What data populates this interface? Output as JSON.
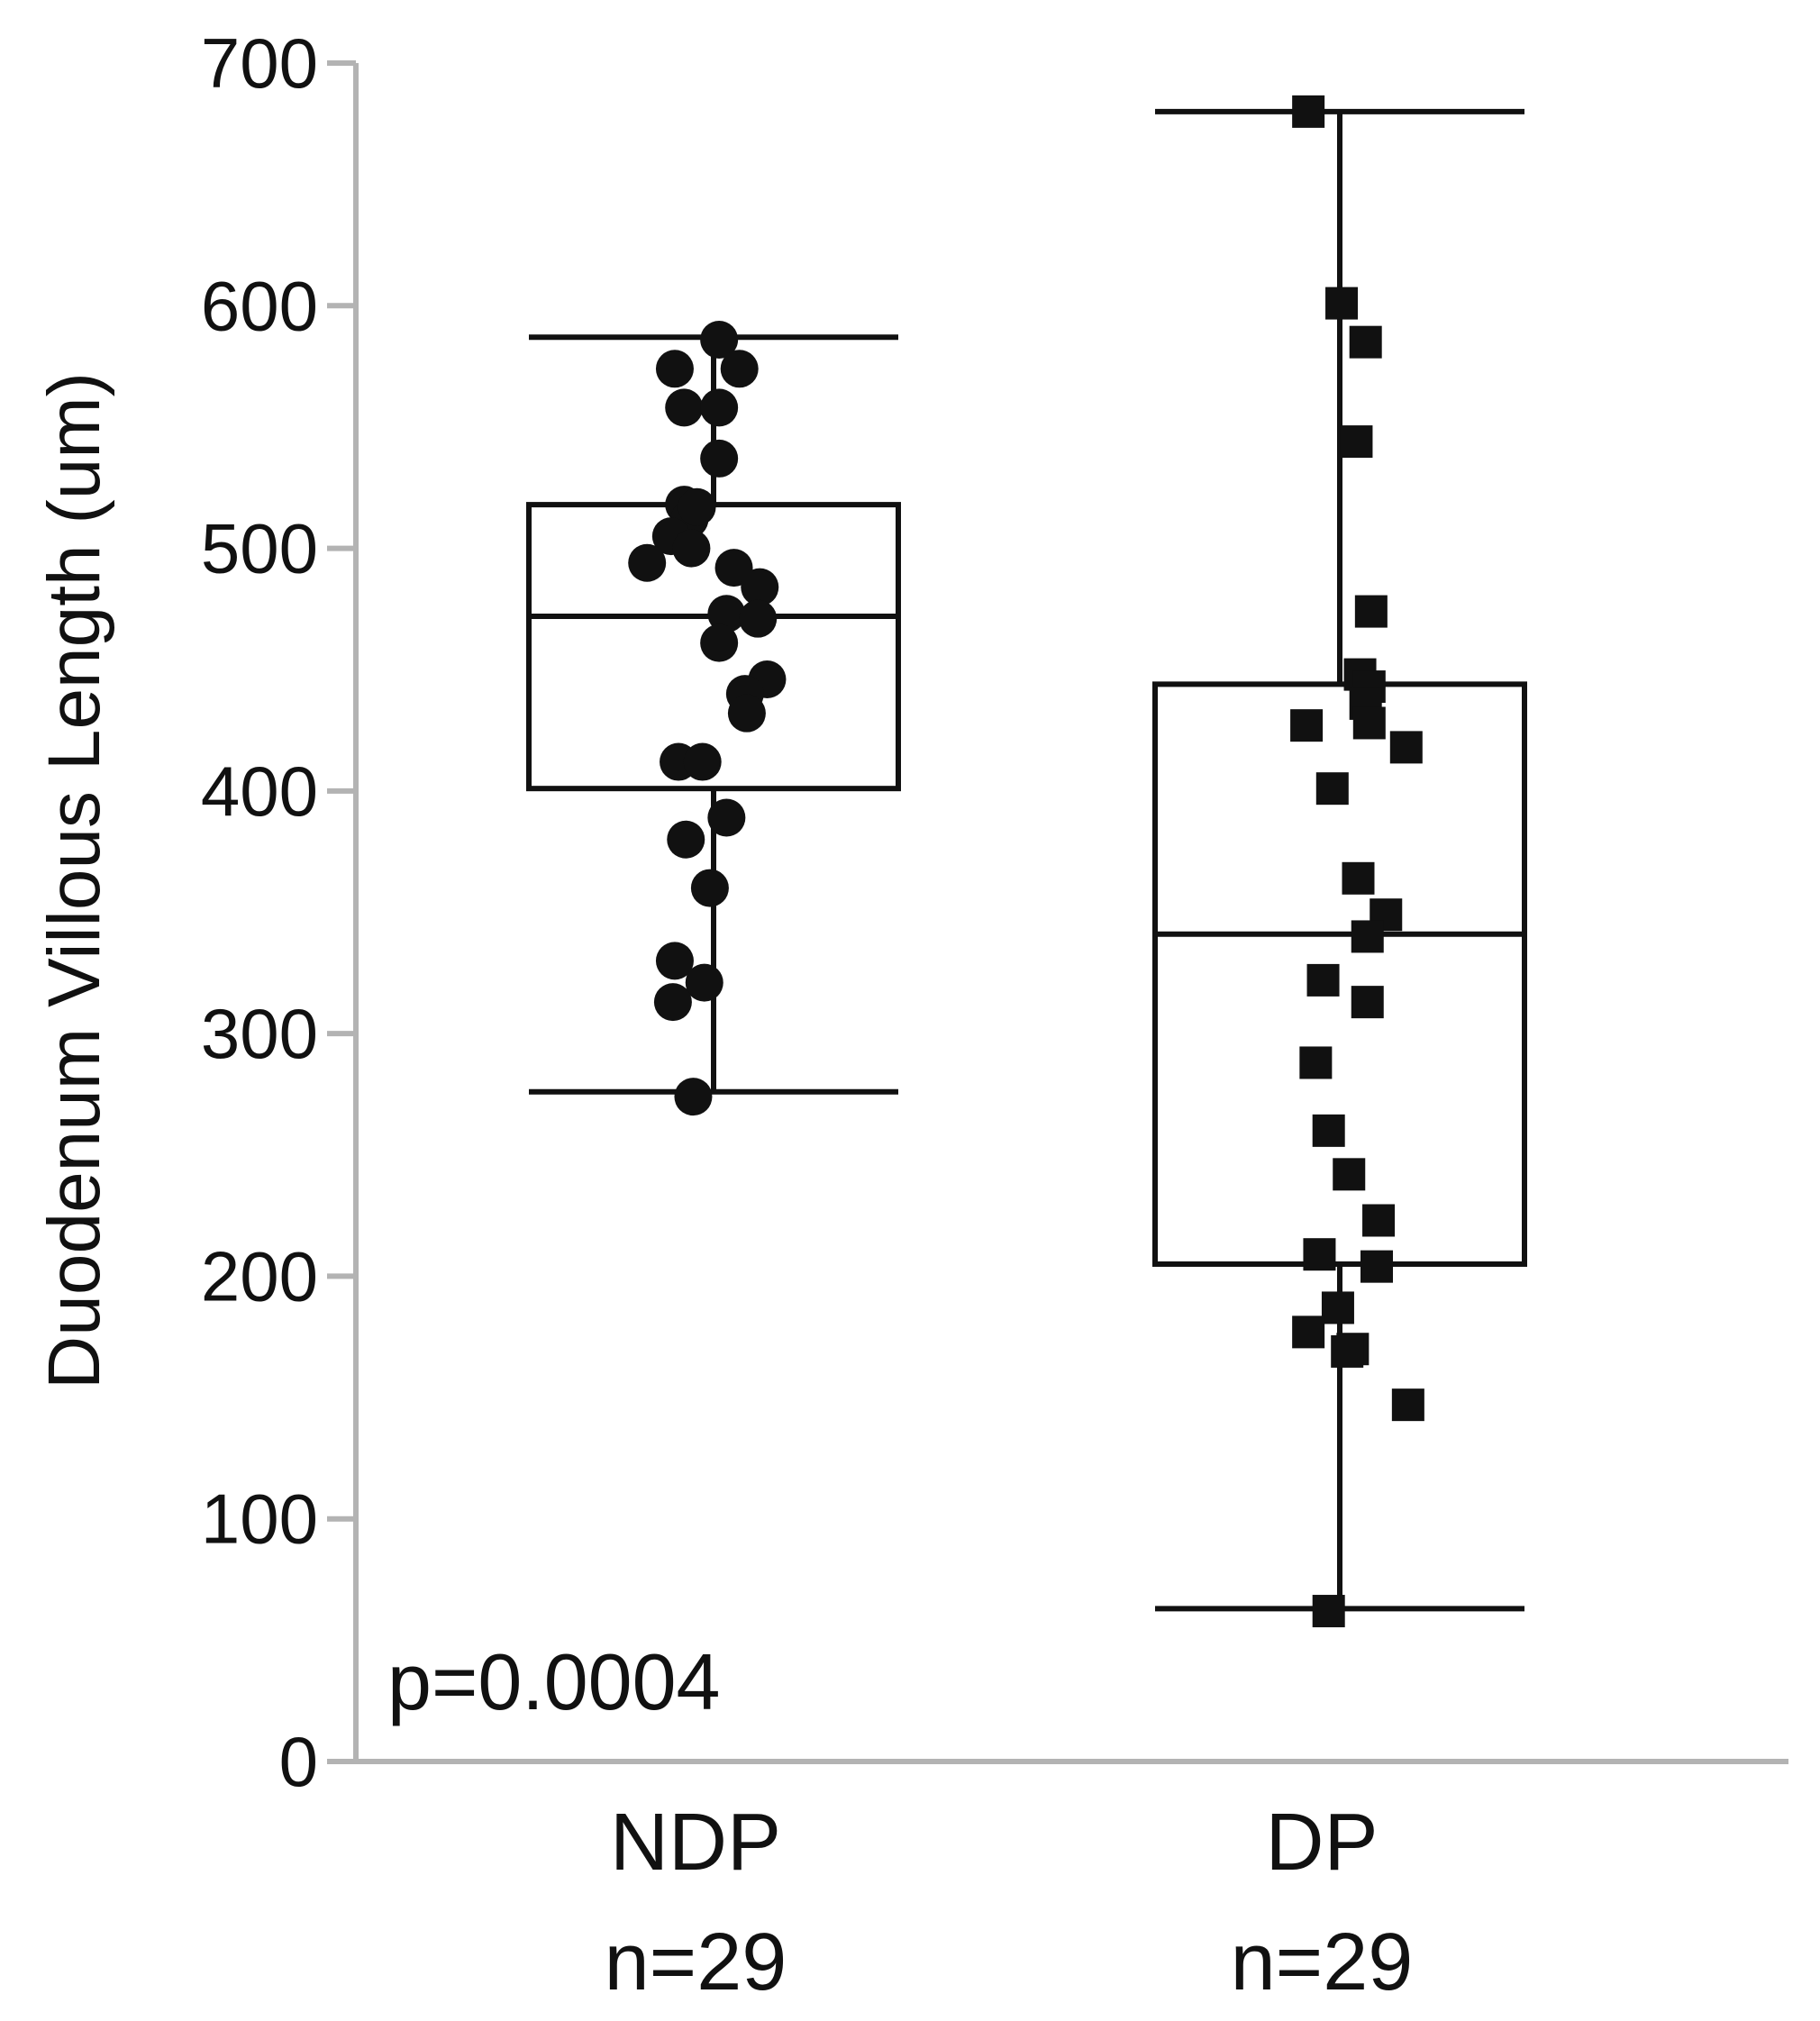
{
  "chart_data": {
    "type": "box",
    "ylabel": "Duodenum Villous Length (um)",
    "ylim": [
      0,
      700
    ],
    "yticks": [
      0,
      100,
      200,
      300,
      400,
      500,
      600,
      700
    ],
    "annotation": "p=0.0004",
    "colors": {
      "axis": "#b3b3b3",
      "marks": "#111111"
    },
    "groups": [
      {
        "name": "NDP",
        "n_label": "n=29",
        "marker": "circle",
        "whisker_low": 276,
        "q1": 401,
        "median": 472,
        "q3": 518,
        "whisker_high": 587,
        "points": [
          {
            "jitter": -0.21,
            "y": 574
          },
          {
            "jitter": -0.16,
            "y": 558
          },
          {
            "jitter": 0.03,
            "y": 586
          },
          {
            "jitter": 0.14,
            "y": 574
          },
          {
            "jitter": 0.03,
            "y": 558
          },
          {
            "jitter": 0.03,
            "y": 537
          },
          {
            "jitter": -0.16,
            "y": 518
          },
          {
            "jitter": -0.13,
            "y": 512
          },
          {
            "jitter": -0.09,
            "y": 517
          },
          {
            "jitter": -0.23,
            "y": 505
          },
          {
            "jitter": -0.12,
            "y": 500
          },
          {
            "jitter": -0.36,
            "y": 494
          },
          {
            "jitter": 0.11,
            "y": 492
          },
          {
            "jitter": 0.25,
            "y": 484
          },
          {
            "jitter": 0.07,
            "y": 473
          },
          {
            "jitter": 0.24,
            "y": 471
          },
          {
            "jitter": 0.03,
            "y": 461
          },
          {
            "jitter": 0.29,
            "y": 446
          },
          {
            "jitter": 0.17,
            "y": 440
          },
          {
            "jitter": 0.18,
            "y": 432
          },
          {
            "jitter": -0.19,
            "y": 412
          },
          {
            "jitter": -0.06,
            "y": 412
          },
          {
            "jitter": 0.07,
            "y": 389
          },
          {
            "jitter": -0.15,
            "y": 380
          },
          {
            "jitter": -0.02,
            "y": 360
          },
          {
            "jitter": -0.21,
            "y": 330
          },
          {
            "jitter": -0.05,
            "y": 321
          },
          {
            "jitter": -0.22,
            "y": 313
          },
          {
            "jitter": -0.11,
            "y": 274
          }
        ]
      },
      {
        "name": "DP",
        "n_label": "n=29",
        "marker": "square",
        "whisker_low": 63,
        "q1": 205,
        "median": 341,
        "q3": 444,
        "whisker_high": 680,
        "points": [
          {
            "jitter": -0.17,
            "y": 680
          },
          {
            "jitter": 0.01,
            "y": 601
          },
          {
            "jitter": 0.14,
            "y": 585
          },
          {
            "jitter": 0.09,
            "y": 544
          },
          {
            "jitter": 0.17,
            "y": 474
          },
          {
            "jitter": 0.11,
            "y": 448
          },
          {
            "jitter": 0.16,
            "y": 443
          },
          {
            "jitter": 0.14,
            "y": 436
          },
          {
            "jitter": 0.16,
            "y": 428
          },
          {
            "jitter": -0.18,
            "y": 427
          },
          {
            "jitter": 0.36,
            "y": 418
          },
          {
            "jitter": -0.04,
            "y": 401
          },
          {
            "jitter": 0.1,
            "y": 364
          },
          {
            "jitter": 0.25,
            "y": 349
          },
          {
            "jitter": 0.15,
            "y": 340
          },
          {
            "jitter": -0.09,
            "y": 322
          },
          {
            "jitter": 0.15,
            "y": 313
          },
          {
            "jitter": -0.13,
            "y": 288
          },
          {
            "jitter": -0.06,
            "y": 260
          },
          {
            "jitter": 0.05,
            "y": 242
          },
          {
            "jitter": 0.21,
            "y": 223
          },
          {
            "jitter": -0.11,
            "y": 209
          },
          {
            "jitter": 0.2,
            "y": 204
          },
          {
            "jitter": -0.01,
            "y": 187
          },
          {
            "jitter": -0.17,
            "y": 177
          },
          {
            "jitter": 0.07,
            "y": 170
          },
          {
            "jitter": 0.04,
            "y": 169
          },
          {
            "jitter": 0.37,
            "y": 147
          },
          {
            "jitter": -0.06,
            "y": 62
          }
        ]
      }
    ]
  }
}
